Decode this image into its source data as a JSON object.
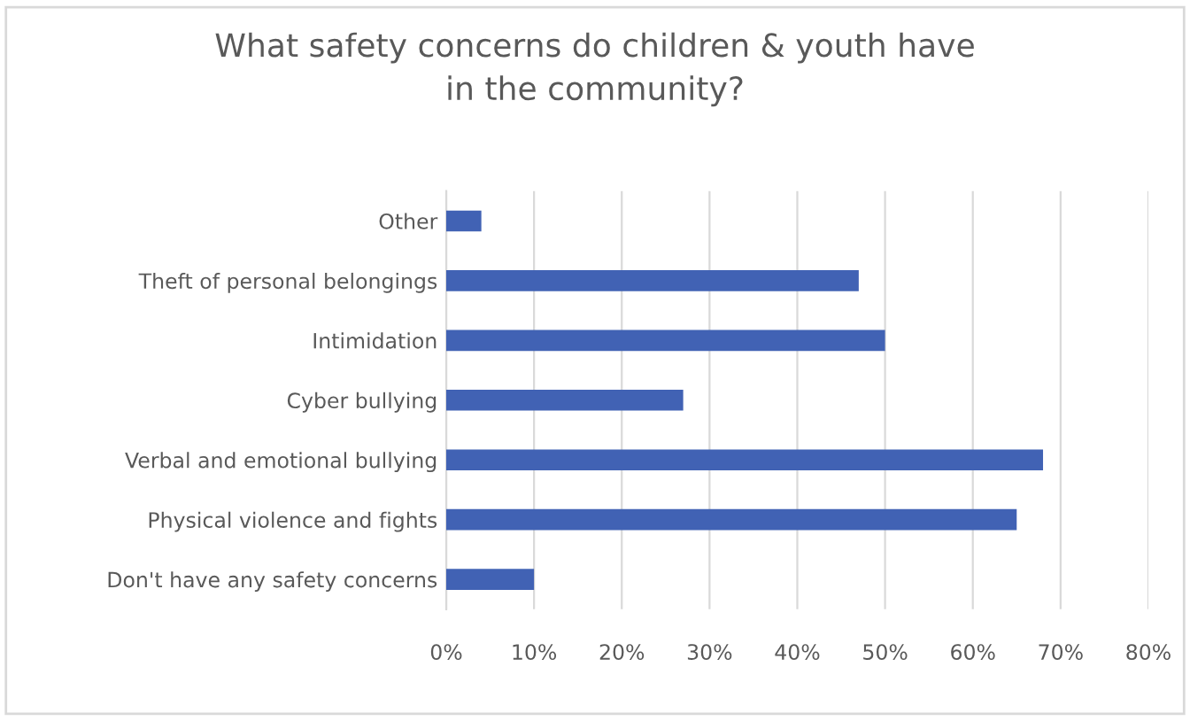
{
  "chart_data": {
    "type": "bar",
    "orientation": "horizontal",
    "title": "What safety concerns do children & youth have\nin the community?",
    "categories": [
      "Other",
      "Theft of personal belongings",
      "Intimidation",
      "Cyber bullying",
      "Verbal and emotional bullying",
      "Physical violence and fights",
      "Don't have any safety concerns"
    ],
    "values": [
      4,
      47,
      50,
      27,
      68,
      65,
      10
    ],
    "color": "#4162b4",
    "xlim": [
      0,
      80
    ],
    "xticks": [
      {
        "value": 0,
        "label": "0%"
      },
      {
        "value": 10,
        "label": "10%"
      },
      {
        "value": 20,
        "label": "20%"
      },
      {
        "value": 30,
        "label": "30%"
      },
      {
        "value": 40,
        "label": "40%"
      },
      {
        "value": 50,
        "label": "50%"
      },
      {
        "value": 60,
        "label": "60%"
      },
      {
        "value": 70,
        "label": "70%"
      },
      {
        "value": 80,
        "label": "80%"
      }
    ],
    "grid": "x"
  }
}
